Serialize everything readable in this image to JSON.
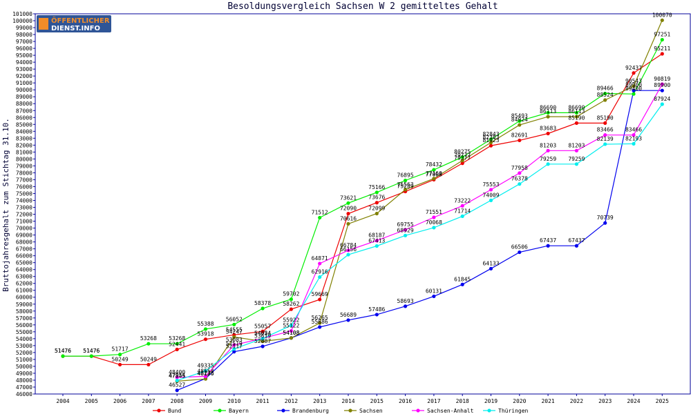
{
  "logo": {
    "line1": "ÖFFENTLICHER",
    "line2": "DIENST.INFO",
    "color_primary": "#f28c28",
    "color_secondary": "#ffffff"
  },
  "chart_data": {
    "type": "line",
    "title": "Besoldungsvergleich Sachsen W 2 gemitteltes Gehalt",
    "xlabel": "",
    "ylabel": "Bruttojahresgehalt zum Stichtag 31.10.",
    "categories": [
      "2004",
      "2005",
      "2006",
      "2007",
      "2008",
      "2009",
      "2010",
      "2011",
      "2012",
      "2013",
      "2014",
      "2015",
      "2016",
      "2017",
      "2018",
      "2019",
      "2020",
      "2021",
      "2022",
      "2023",
      "2024",
      "2025"
    ],
    "ylim": [
      46000,
      101000
    ],
    "ytick_step": 1000,
    "grid": false,
    "legend_position": "bottom",
    "series": [
      {
        "name": "Bund",
        "color": "#ee0000",
        "values": [
          51476,
          51476,
          50249,
          50249,
          52441,
          53918,
          54555,
          55057,
          58262,
          59669,
          72090,
          73676,
          75289,
          77008,
          79377,
          81923,
          82691,
          83683,
          85190,
          85190,
          92437,
          95211
        ]
      },
      {
        "name": "Bayern",
        "color": "#00ee00",
        "values": [
          51476,
          51476,
          51717,
          53268,
          53268,
          55388,
          56052,
          58378,
          59702,
          71512,
          73621,
          75166,
          76895,
          78432,
          80275,
          82843,
          85493,
          86690,
          86690,
          89466,
          89400,
          97251
        ]
      },
      {
        "name": "Brandenburg",
        "color": "#0000ee",
        "values": [
          null,
          null,
          null,
          null,
          46527,
          48233,
          52117,
          52887,
          54108,
          55686,
          56689,
          57486,
          58693,
          60131,
          61845,
          64133,
          66506,
          67437,
          67437,
          70739,
          89900,
          89900
        ]
      },
      {
        "name": "Sachsen",
        "color": "#808000",
        "values": [
          null,
          null,
          null,
          null,
          47845,
          48176,
          54247,
          53619,
          54108,
          56265,
          70616,
          72099,
          75563,
          77160,
          79777,
          82383,
          84924,
          86113,
          86113,
          88524,
          90543,
          100070
        ]
      },
      {
        "name": "Sachsen-Anhalt",
        "color": "#ff00ff",
        "values": [
          null,
          null,
          null,
          null,
          48400,
          48553,
          53083,
          54054,
          55122,
          64871,
          66784,
          68187,
          69755,
          71551,
          73222,
          75553,
          77958,
          81203,
          81203,
          83466,
          83466,
          90819
        ]
      },
      {
        "name": "Thüringen",
        "color": "#00eeee",
        "values": [
          null,
          null,
          null,
          null,
          47954,
          49335,
          52519,
          54024,
          55922,
          62916,
          66156,
          67413,
          68929,
          70068,
          71714,
          74009,
          76378,
          79259,
          79259,
          82139,
          82193,
          87924
        ]
      }
    ]
  }
}
